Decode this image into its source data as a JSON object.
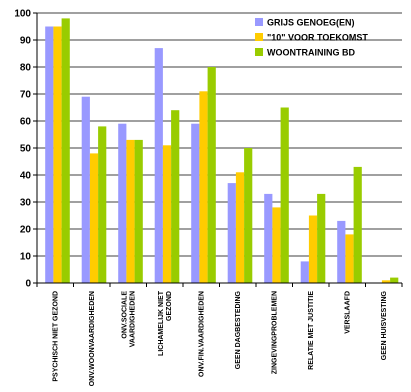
{
  "chart_data": {
    "type": "bar",
    "title": "",
    "xlabel": "",
    "ylabel": "",
    "ylim": [
      0,
      100
    ],
    "yticks": [
      0,
      10,
      20,
      30,
      40,
      50,
      60,
      70,
      80,
      90,
      100
    ],
    "grid": true,
    "legend_position": "top-right",
    "categories": [
      [
        "PSYCHISCH NIET GEZOND"
      ],
      [
        "ONV.WOONVAARDIGHEDEN"
      ],
      [
        "ONV.SOCIALE",
        "VAARDIGHEDEN"
      ],
      [
        "LICHAMELIJK NIET",
        "GEZOND"
      ],
      [
        "ONV.FIN.VAARDIGHEDEN"
      ],
      [
        "GEEN DAGBESTEDING"
      ],
      [
        "ZINGEVINGPROBLEMEN"
      ],
      [
        "RELATIE MET JUSTITIE"
      ],
      [
        "VERSLAAFD"
      ],
      [
        "GEEN HUISVESTING"
      ]
    ],
    "series": [
      {
        "name": "GRIJS GENOEG(EN)",
        "color": "#9999ff",
        "values": [
          95,
          69,
          59,
          87,
          59,
          37,
          33,
          8,
          23,
          0
        ]
      },
      {
        "name": "\"10\" VOOR TOEKOMST",
        "color": "#ffcc00",
        "values": [
          95,
          48,
          53,
          51,
          71,
          41,
          28,
          25,
          18,
          1
        ]
      },
      {
        "name": "WOONTRAINING BD",
        "color": "#99cc00",
        "values": [
          98,
          58,
          53,
          64,
          80,
          50,
          65,
          33,
          43,
          2
        ]
      }
    ]
  }
}
